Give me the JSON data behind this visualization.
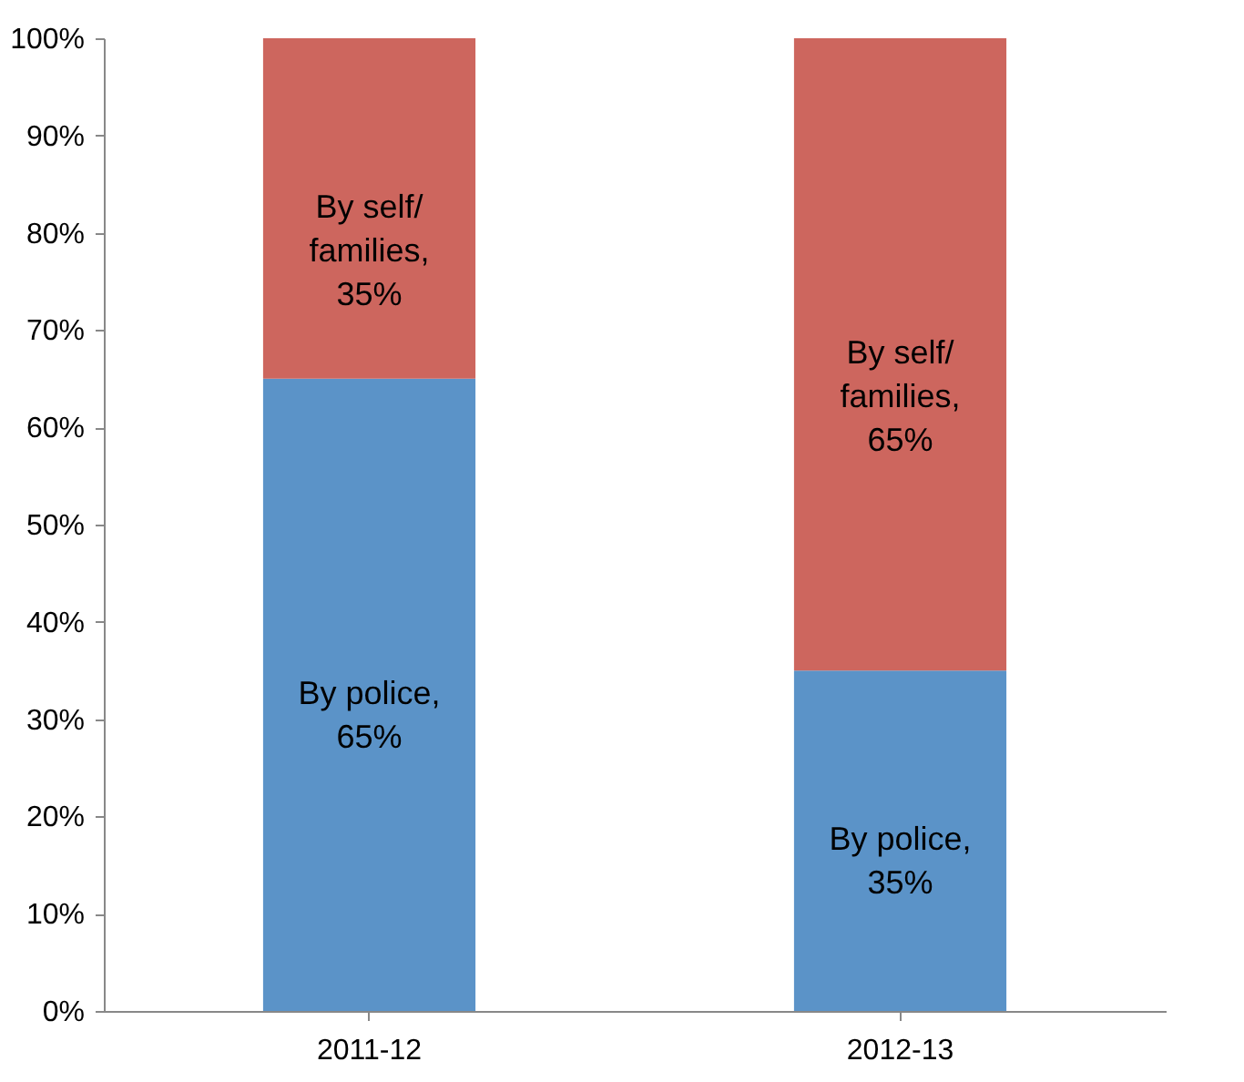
{
  "chart_data": {
    "type": "bar",
    "stacked": true,
    "categories": [
      "2011-12",
      "2012-13"
    ],
    "series": [
      {
        "color": "#5b93c8",
        "values": [
          65,
          35
        ],
        "value_labels": [
          "By police, 65%",
          "By police, 35%"
        ]
      },
      {
        "color": "#cd665e",
        "values": [
          35,
          65
        ],
        "value_labels": [
          "By self/ families, 35%",
          "By self/ families, 65%"
        ]
      }
    ],
    "ylim": [
      0,
      100
    ],
    "yticks": [
      {
        "value": 0,
        "label": "0%"
      },
      {
        "value": 10,
        "label": "10%"
      },
      {
        "value": 20,
        "label": "20%"
      },
      {
        "value": 30,
        "label": "30%"
      },
      {
        "value": 40,
        "label": "40%"
      },
      {
        "value": 50,
        "label": "50%"
      },
      {
        "value": 60,
        "label": "60%"
      },
      {
        "value": 70,
        "label": "70%"
      },
      {
        "value": 80,
        "label": "80%"
      },
      {
        "value": 90,
        "label": "90%"
      },
      {
        "value": 100,
        "label": "100%"
      }
    ],
    "grid": false,
    "legend": false
  }
}
